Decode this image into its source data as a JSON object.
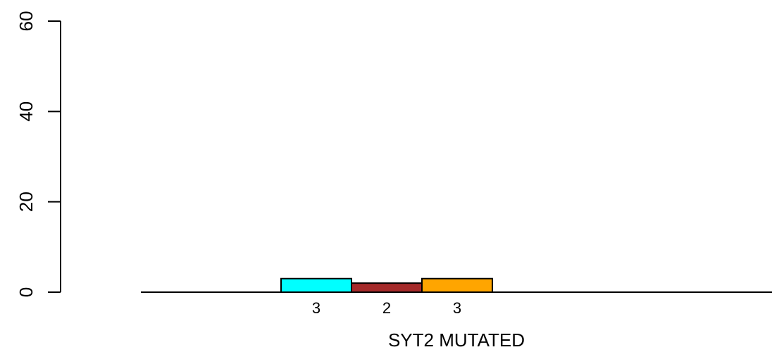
{
  "chart_data": {
    "type": "bar",
    "xlabel": "SYT2 MUTATED",
    "ylabel": "",
    "ylim": [
      0,
      60
    ],
    "yticks": [
      "0",
      "20",
      "40",
      "60"
    ],
    "grid": false,
    "bars": [
      {
        "value": 3,
        "label": "3",
        "color": "#00FFFF"
      },
      {
        "value": 2,
        "label": "2",
        "color": "#A52A2A"
      },
      {
        "value": 3,
        "label": "3",
        "color": "#FFA500"
      }
    ]
  }
}
